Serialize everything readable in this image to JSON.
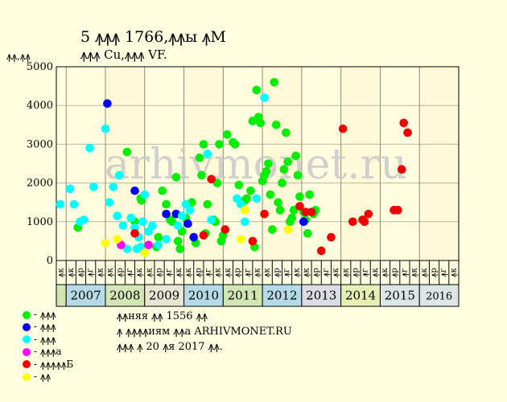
{
  "header": {
    "title": "5 ꙟꙟꙟ 1766,ꙟꙟы ꙟМ",
    "subtitle": "ꙟꙟꙟ Cu,ꙟꙟꙟ VF.",
    "ylabel": "ꙟꙟ,ꙟꙟ"
  },
  "watermark": "arhivmonet.ru",
  "legend": {
    "items": [
      {
        "label": "- ꙟꙟꙟ",
        "color": "#00ee00"
      },
      {
        "label": "- ꙟꙟꙟ",
        "color": "#0000ee"
      },
      {
        "label": "- ꙟꙟꙟ",
        "color": "#00ffff"
      },
      {
        "label": "- ꙟꙟꙟа",
        "color": "#ff00ff"
      },
      {
        "label": "- ꙟꙟꙟꙟꙟБ",
        "color": "#ee0000"
      },
      {
        "label": "- ꙟꙟ",
        "color": "#ffff00"
      }
    ]
  },
  "note": {
    "line1": "ꙟꙟняя ꙟꙟ 1556 ꙟꙟ",
    "line2": "ꙟ ꙟꙟꙟꙟиям ꙟꙟа ARHIVMONET.RU",
    "line3": "ꙟꙟꙟ ꙟ 20 ꙟя 2017 ꙟꙟ."
  },
  "chart_data": {
    "type": "scatter",
    "ylim": [
      0,
      5000
    ],
    "yticks": [
      0,
      1000,
      2000,
      3000,
      4000,
      5000
    ],
    "quarter_labels": [
      "ꙟк",
      "ꙟр",
      "ꙟг",
      "ꙟк"
    ],
    "quarter_labels_2006": [
      "ꙟк"
    ],
    "years": [
      {
        "label": "2007",
        "color": "#b4dce6"
      },
      {
        "label": "2008",
        "color": "#d2e6b4"
      },
      {
        "label": "2009",
        "color": "#e6e6d2"
      },
      {
        "label": "2010",
        "color": "#b4dce6"
      },
      {
        "label": "2011",
        "color": "#d2e6b4"
      },
      {
        "label": "2012",
        "color": "#b4dce6"
      },
      {
        "label": "2013",
        "color": "#dcdce6"
      },
      {
        "label": "2014",
        "color": "#e6f0b4"
      },
      {
        "label": "2015",
        "color": "#dce6e6"
      },
      {
        "label": "2016",
        "color": "#dce6e6"
      }
    ],
    "x_start": 2006.75,
    "x_end": 2017.0,
    "series": [
      {
        "name": "- ꙟꙟꙟ",
        "color": "#00ee00",
        "points": [
          [
            2007.3,
            850
          ],
          [
            2008.55,
            2800
          ],
          [
            2008.75,
            1000
          ],
          [
            2008.9,
            1600
          ],
          [
            2008.92,
            1550
          ],
          [
            2009.3,
            350
          ],
          [
            2009.35,
            600
          ],
          [
            2009.45,
            1800
          ],
          [
            2009.55,
            1450
          ],
          [
            2009.65,
            1050
          ],
          [
            2009.7,
            1000
          ],
          [
            2009.8,
            2150
          ],
          [
            2009.85,
            500
          ],
          [
            2009.9,
            300
          ],
          [
            2009.95,
            750
          ],
          [
            2010.05,
            1100
          ],
          [
            2010.2,
            1500
          ],
          [
            2010.3,
            450
          ],
          [
            2010.4,
            2650
          ],
          [
            2010.45,
            2200
          ],
          [
            2010.5,
            3000
          ],
          [
            2010.55,
            700
          ],
          [
            2010.6,
            1450
          ],
          [
            2010.75,
            1050
          ],
          [
            2010.8,
            1000
          ],
          [
            2010.85,
            2000
          ],
          [
            2010.9,
            3000
          ],
          [
            2010.95,
            500
          ],
          [
            2011.0,
            650
          ],
          [
            2011.1,
            3250
          ],
          [
            2011.25,
            3050
          ],
          [
            2011.3,
            3000
          ],
          [
            2011.4,
            1950
          ],
          [
            2011.55,
            1550
          ],
          [
            2011.6,
            1600
          ],
          [
            2011.7,
            1800
          ],
          [
            2011.75,
            3600
          ],
          [
            2011.8,
            350
          ],
          [
            2011.85,
            4400
          ],
          [
            2011.9,
            3700
          ],
          [
            2011.95,
            3550
          ],
          [
            2012.0,
            2050
          ],
          [
            2012.05,
            2200
          ],
          [
            2012.1,
            2300
          ],
          [
            2012.15,
            2500
          ],
          [
            2012.2,
            1700
          ],
          [
            2012.25,
            800
          ],
          [
            2012.3,
            4600
          ],
          [
            2012.35,
            3500
          ],
          [
            2012.4,
            1500
          ],
          [
            2012.45,
            1300
          ],
          [
            2012.5,
            2000
          ],
          [
            2012.55,
            2350
          ],
          [
            2012.6,
            3300
          ],
          [
            2012.65,
            2550
          ],
          [
            2012.7,
            1000
          ],
          [
            2012.75,
            1100
          ],
          [
            2012.8,
            1300
          ],
          [
            2012.85,
            2700
          ],
          [
            2012.9,
            2200
          ],
          [
            2012.95,
            1650
          ],
          [
            2013.05,
            1250
          ],
          [
            2013.1,
            1050
          ],
          [
            2013.15,
            700
          ],
          [
            2013.2,
            1700
          ],
          [
            2013.3,
            1200
          ],
          [
            2013.35,
            1300
          ]
        ]
      },
      {
        "name": "- ꙟꙟꙟ",
        "color": "#0000ee",
        "points": [
          [
            2008.05,
            4050
          ],
          [
            2008.75,
            1800
          ],
          [
            2009.55,
            1200
          ],
          [
            2009.8,
            1200
          ],
          [
            2010.1,
            950
          ],
          [
            2010.25,
            600
          ],
          [
            2013.05,
            1000
          ]
        ]
      },
      {
        "name": "- ꙟꙟꙟ",
        "color": "#00ffff",
        "points": [
          [
            2006.85,
            1450
          ],
          [
            2007.1,
            1850
          ],
          [
            2007.2,
            1450
          ],
          [
            2007.35,
            1000
          ],
          [
            2007.45,
            1050
          ],
          [
            2007.6,
            2900
          ],
          [
            2007.7,
            1900
          ],
          [
            2008.0,
            3400
          ],
          [
            2008.1,
            1500
          ],
          [
            2008.2,
            1900
          ],
          [
            2008.3,
            1150
          ],
          [
            2008.35,
            2200
          ],
          [
            2008.45,
            900
          ],
          [
            2008.55,
            300
          ],
          [
            2008.65,
            1100
          ],
          [
            2008.75,
            850
          ],
          [
            2008.8,
            300
          ],
          [
            2008.85,
            600
          ],
          [
            2008.9,
            350
          ],
          [
            2008.95,
            1000
          ],
          [
            2009.0,
            1700
          ],
          [
            2009.1,
            750
          ],
          [
            2009.2,
            900
          ],
          [
            2009.35,
            400
          ],
          [
            2009.55,
            550
          ],
          [
            2009.85,
            900
          ],
          [
            2009.95,
            1150
          ],
          [
            2010.05,
            1450
          ],
          [
            2010.15,
            1300
          ],
          [
            2010.6,
            2750
          ],
          [
            2010.7,
            1050
          ],
          [
            2011.35,
            1600
          ],
          [
            2011.45,
            1450
          ],
          [
            2011.55,
            1000
          ],
          [
            2011.85,
            1600
          ],
          [
            2012.05,
            4200
          ]
        ]
      },
      {
        "name": "- ꙟꙟꙟа",
        "color": "#ff00ff",
        "points": [
          [
            2008.4,
            400
          ],
          [
            2009.1,
            400
          ]
        ]
      },
      {
        "name": "- ꙟꙟꙟꙟꙟБ",
        "color": "#ee0000",
        "points": [
          [
            2008.75,
            700
          ],
          [
            2010.5,
            650
          ],
          [
            2010.7,
            2100
          ],
          [
            2011.05,
            800
          ],
          [
            2011.75,
            500
          ],
          [
            2012.05,
            1200
          ],
          [
            2012.95,
            1400
          ],
          [
            2013.1,
            1250
          ],
          [
            2013.25,
            1250
          ],
          [
            2013.5,
            250
          ],
          [
            2013.75,
            600
          ],
          [
            2014.05,
            3400
          ],
          [
            2014.3,
            1000
          ],
          [
            2014.55,
            1050
          ],
          [
            2014.6,
            1000
          ],
          [
            2014.7,
            1200
          ],
          [
            2015.35,
            1300
          ],
          [
            2015.45,
            1300
          ],
          [
            2015.55,
            2350
          ],
          [
            2015.6,
            3550
          ],
          [
            2015.7,
            3300
          ]
        ]
      },
      {
        "name": "- ꙟꙟ",
        "color": "#ffff00",
        "points": [
          [
            2008.0,
            450
          ],
          [
            2008.3,
            550
          ],
          [
            2009.0,
            200
          ],
          [
            2011.45,
            550
          ],
          [
            2011.55,
            1300
          ],
          [
            2012.65,
            800
          ]
        ]
      }
    ]
  }
}
